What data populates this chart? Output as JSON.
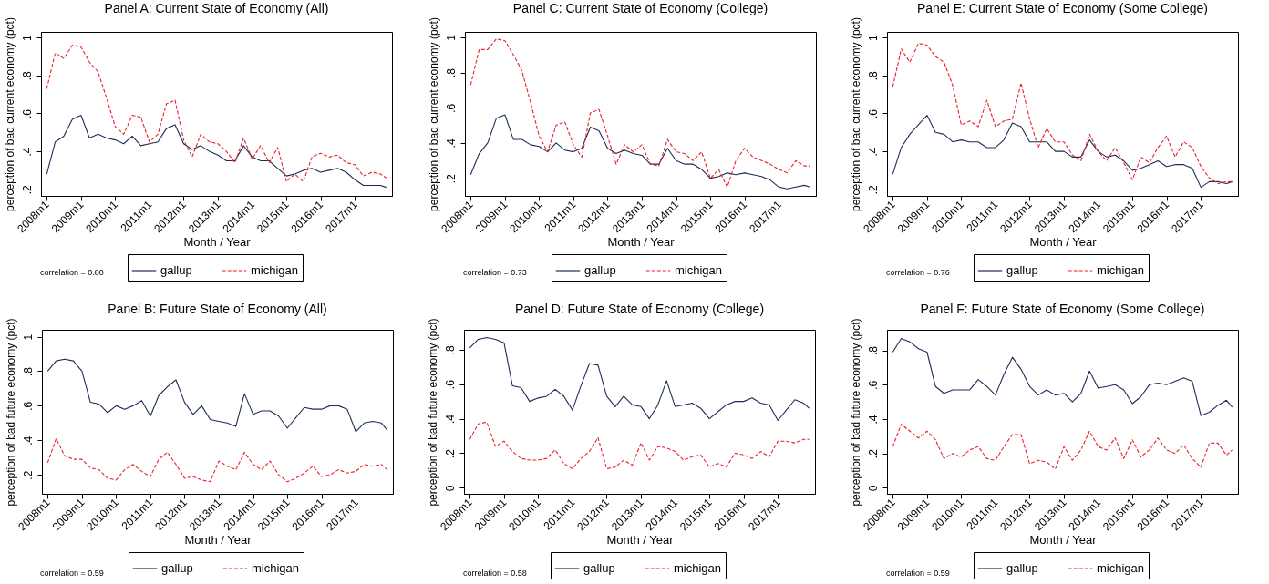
{
  "chart_data": [
    {
      "type": "line",
      "title": "Panel A: Current State of Economy (All)",
      "xlabel": "Month / Year",
      "ylabel": "perception of bad current economy (pct)",
      "legend": "bottom",
      "annotations": [
        "correlation = 0.80"
      ],
      "x": [
        "2008-01",
        "2008-04",
        "2008-07",
        "2008-10",
        "2009-01",
        "2009-04",
        "2009-07",
        "2009-10",
        "2010-01",
        "2010-04",
        "2010-07",
        "2010-10",
        "2011-01",
        "2011-04",
        "2011-07",
        "2011-10",
        "2012-01",
        "2012-04",
        "2012-07",
        "2012-10",
        "2013-01",
        "2013-04",
        "2013-07",
        "2013-10",
        "2014-01",
        "2014-04",
        "2014-07",
        "2014-10",
        "2015-01",
        "2015-04",
        "2015-07",
        "2015-10",
        "2016-01",
        "2016-04",
        "2016-07",
        "2016-10",
        "2017-01",
        "2017-04",
        "2017-07",
        "2017-10",
        "2017-12"
      ],
      "xlim": [
        "2007-11",
        "2018-02"
      ],
      "xticks": [
        {
          "value": "2008-01",
          "label": "2008m1"
        },
        {
          "value": "2009-01",
          "label": "2009m1"
        },
        {
          "value": "2010-01",
          "label": "2010m1"
        },
        {
          "value": "2011-01",
          "label": "2011m1"
        },
        {
          "value": "2012-01",
          "label": "2012m1"
        },
        {
          "value": "2013-01",
          "label": "2013m1"
        },
        {
          "value": "2014-01",
          "label": "2014m1"
        },
        {
          "value": "2015-01",
          "label": "2015m1"
        },
        {
          "value": "2016-01",
          "label": "2016m1"
        },
        {
          "value": "2017-01",
          "label": "2017m1"
        }
      ],
      "ylim": [
        0.165,
        1.03
      ],
      "yticks": [
        {
          "value": 0.2,
          "label": ".2"
        },
        {
          "value": 0.4,
          "label": ".4"
        },
        {
          "value": 0.6,
          "label": ".6"
        },
        {
          "value": 0.8,
          "label": ".8"
        },
        {
          "value": 1,
          "label": "1"
        }
      ],
      "series": [
        {
          "name": "gallup",
          "color": "#1c2d5a",
          "line_style": "solid",
          "values": [
            0.28,
            0.45,
            0.48,
            0.57,
            0.59,
            0.47,
            0.49,
            0.47,
            0.46,
            0.44,
            0.48,
            0.43,
            0.44,
            0.45,
            0.52,
            0.54,
            0.44,
            0.41,
            0.43,
            0.4,
            0.38,
            0.35,
            0.35,
            0.43,
            0.37,
            0.35,
            0.35,
            0.31,
            0.27,
            0.28,
            0.3,
            0.31,
            0.29,
            0.3,
            0.31,
            0.29,
            0.25,
            0.22,
            0.22,
            0.22,
            0.21
          ]
        },
        {
          "name": "michigan",
          "color": "#e8202a",
          "line_style": "dashed",
          "values": [
            0.73,
            0.92,
            0.89,
            0.96,
            0.95,
            0.87,
            0.82,
            0.68,
            0.53,
            0.49,
            0.59,
            0.58,
            0.45,
            0.49,
            0.65,
            0.67,
            0.46,
            0.37,
            0.49,
            0.45,
            0.44,
            0.4,
            0.34,
            0.47,
            0.36,
            0.43,
            0.34,
            0.42,
            0.24,
            0.28,
            0.24,
            0.37,
            0.39,
            0.37,
            0.38,
            0.34,
            0.33,
            0.27,
            0.29,
            0.28,
            0.26
          ]
        }
      ]
    },
    {
      "type": "line",
      "title": "Panel C: Current State of Economy (College)",
      "xlabel": "Month / Year",
      "ylabel": "perception of bad current economy (pct)",
      "legend": "bottom",
      "annotations": [
        "correlation = 0.73"
      ],
      "x": [
        "2008-01",
        "2008-04",
        "2008-07",
        "2008-10",
        "2009-01",
        "2009-04",
        "2009-07",
        "2009-10",
        "2010-01",
        "2010-04",
        "2010-07",
        "2010-10",
        "2011-01",
        "2011-04",
        "2011-07",
        "2011-10",
        "2012-01",
        "2012-04",
        "2012-07",
        "2012-10",
        "2013-01",
        "2013-04",
        "2013-07",
        "2013-10",
        "2014-01",
        "2014-04",
        "2014-07",
        "2014-10",
        "2015-01",
        "2015-04",
        "2015-07",
        "2015-10",
        "2016-01",
        "2016-04",
        "2016-07",
        "2016-10",
        "2017-01",
        "2017-04",
        "2017-07",
        "2017-10",
        "2017-12"
      ],
      "xlim": [
        "2007-11",
        "2018-02"
      ],
      "xticks": [
        {
          "value": "2008-01",
          "label": "2008m1"
        },
        {
          "value": "2009-01",
          "label": "2009m1"
        },
        {
          "value": "2010-01",
          "label": "2010m1"
        },
        {
          "value": "2011-01",
          "label": "2011m1"
        },
        {
          "value": "2012-01",
          "label": "2012m1"
        },
        {
          "value": "2013-01",
          "label": "2013m1"
        },
        {
          "value": "2014-01",
          "label": "2014m1"
        },
        {
          "value": "2015-01",
          "label": "2015m1"
        },
        {
          "value": "2016-01",
          "label": "2016m1"
        },
        {
          "value": "2017-01",
          "label": "2017m1"
        }
      ],
      "ylim": [
        0.1,
        1.03
      ],
      "yticks": [
        {
          "value": 0.2,
          "label": ".2"
        },
        {
          "value": 0.4,
          "label": ".4"
        },
        {
          "value": 0.6,
          "label": ".6"
        },
        {
          "value": 0.8,
          "label": ".8"
        },
        {
          "value": 1,
          "label": "1"
        }
      ],
      "series": [
        {
          "name": "gallup",
          "color": "#1c2d5a",
          "line_style": "solid",
          "values": [
            0.22,
            0.34,
            0.4,
            0.54,
            0.56,
            0.42,
            0.42,
            0.39,
            0.38,
            0.35,
            0.4,
            0.36,
            0.35,
            0.37,
            0.49,
            0.47,
            0.37,
            0.34,
            0.36,
            0.34,
            0.33,
            0.28,
            0.28,
            0.37,
            0.3,
            0.28,
            0.28,
            0.25,
            0.2,
            0.21,
            0.23,
            0.22,
            0.23,
            0.22,
            0.21,
            0.19,
            0.15,
            0.14,
            0.15,
            0.16,
            0.15
          ]
        },
        {
          "name": "michigan",
          "color": "#e8202a",
          "line_style": "dashed",
          "values": [
            0.73,
            0.93,
            0.93,
            0.99,
            0.98,
            0.9,
            0.81,
            0.63,
            0.44,
            0.35,
            0.5,
            0.52,
            0.39,
            0.32,
            0.57,
            0.59,
            0.44,
            0.28,
            0.39,
            0.35,
            0.39,
            0.28,
            0.27,
            0.42,
            0.35,
            0.34,
            0.3,
            0.35,
            0.2,
            0.25,
            0.15,
            0.3,
            0.37,
            0.32,
            0.3,
            0.28,
            0.25,
            0.23,
            0.3,
            0.27,
            0.27
          ]
        }
      ]
    },
    {
      "type": "line",
      "title": "Panel E: Current State of Economy (Some College)",
      "xlabel": "Month / Year",
      "ylabel": "perception of bad current economy (pct)",
      "legend": "bottom",
      "annotations": [
        "correlation = 0.76"
      ],
      "x": [
        "2008-01",
        "2008-04",
        "2008-07",
        "2008-10",
        "2009-01",
        "2009-04",
        "2009-07",
        "2009-10",
        "2010-01",
        "2010-04",
        "2010-07",
        "2010-10",
        "2011-01",
        "2011-04",
        "2011-07",
        "2011-10",
        "2012-01",
        "2012-04",
        "2012-07",
        "2012-10",
        "2013-01",
        "2013-04",
        "2013-07",
        "2013-10",
        "2014-01",
        "2014-04",
        "2014-07",
        "2014-10",
        "2015-01",
        "2015-04",
        "2015-07",
        "2015-10",
        "2016-01",
        "2016-04",
        "2016-07",
        "2016-10",
        "2017-01",
        "2017-04",
        "2017-07",
        "2017-10",
        "2017-12"
      ],
      "xlim": [
        "2007-11",
        "2018-02"
      ],
      "xticks": [
        {
          "value": "2008-01",
          "label": "2008m1"
        },
        {
          "value": "2009-01",
          "label": "2009m1"
        },
        {
          "value": "2010-01",
          "label": "2010m1"
        },
        {
          "value": "2011-01",
          "label": "2011m1"
        },
        {
          "value": "2012-01",
          "label": "2012m1"
        },
        {
          "value": "2013-01",
          "label": "2013m1"
        },
        {
          "value": "2014-01",
          "label": "2014m1"
        },
        {
          "value": "2015-01",
          "label": "2015m1"
        },
        {
          "value": "2016-01",
          "label": "2016m1"
        },
        {
          "value": "2017-01",
          "label": "2017m1"
        }
      ],
      "ylim": [
        0.165,
        1.03
      ],
      "yticks": [
        {
          "value": 0.2,
          "label": ".2"
        },
        {
          "value": 0.4,
          "label": ".4"
        },
        {
          "value": 0.6,
          "label": ".6"
        },
        {
          "value": 0.8,
          "label": ".8"
        },
        {
          "value": 1,
          "label": "1"
        }
      ],
      "series": [
        {
          "name": "gallup",
          "color": "#1c2d5a",
          "line_style": "solid",
          "values": [
            0.28,
            0.42,
            0.49,
            0.54,
            0.59,
            0.5,
            0.49,
            0.45,
            0.46,
            0.45,
            0.45,
            0.42,
            0.42,
            0.46,
            0.55,
            0.53,
            0.45,
            0.45,
            0.45,
            0.4,
            0.4,
            0.37,
            0.37,
            0.46,
            0.4,
            0.37,
            0.38,
            0.35,
            0.3,
            0.31,
            0.33,
            0.35,
            0.32,
            0.33,
            0.33,
            0.31,
            0.21,
            0.24,
            0.24,
            0.23,
            0.24
          ]
        },
        {
          "name": "michigan",
          "color": "#e8202a",
          "line_style": "dashed",
          "values": [
            0.74,
            0.94,
            0.87,
            0.97,
            0.96,
            0.9,
            0.87,
            0.75,
            0.54,
            0.56,
            0.53,
            0.67,
            0.53,
            0.56,
            0.57,
            0.76,
            0.57,
            0.42,
            0.52,
            0.45,
            0.45,
            0.38,
            0.35,
            0.49,
            0.4,
            0.35,
            0.42,
            0.34,
            0.25,
            0.37,
            0.34,
            0.42,
            0.48,
            0.37,
            0.45,
            0.42,
            0.32,
            0.26,
            0.23,
            0.24,
            0.24
          ]
        }
      ]
    },
    {
      "type": "line",
      "title": "Panel B: Future State of Economy (All)",
      "xlabel": "Month / Year",
      "ylabel": "perception of bad future economy (pct)",
      "legend": "bottom",
      "annotations": [
        "correlation = 0.59"
      ],
      "x": [
        "2008-01",
        "2008-04",
        "2008-07",
        "2008-10",
        "2009-01",
        "2009-04",
        "2009-07",
        "2009-10",
        "2010-01",
        "2010-04",
        "2010-07",
        "2010-10",
        "2011-01",
        "2011-04",
        "2011-07",
        "2011-10",
        "2012-01",
        "2012-04",
        "2012-07",
        "2012-10",
        "2013-01",
        "2013-04",
        "2013-07",
        "2013-10",
        "2014-01",
        "2014-04",
        "2014-07",
        "2014-10",
        "2015-01",
        "2015-04",
        "2015-07",
        "2015-10",
        "2016-01",
        "2016-04",
        "2016-07",
        "2016-10",
        "2017-01",
        "2017-04",
        "2017-07",
        "2017-10",
        "2017-12"
      ],
      "xlim": [
        "2007-11",
        "2018-02"
      ],
      "xticks": [
        {
          "value": "2008-01",
          "label": "2008m1"
        },
        {
          "value": "2009-01",
          "label": "2009m1"
        },
        {
          "value": "2010-01",
          "label": "2010m1"
        },
        {
          "value": "2011-01",
          "label": "2011m1"
        },
        {
          "value": "2012-01",
          "label": "2012m1"
        },
        {
          "value": "2013-01",
          "label": "2013m1"
        },
        {
          "value": "2014-01",
          "label": "2014m1"
        },
        {
          "value": "2015-01",
          "label": "2015m1"
        },
        {
          "value": "2016-01",
          "label": "2016m1"
        },
        {
          "value": "2017-01",
          "label": "2017m1"
        }
      ],
      "ylim": [
        0.09,
        1.04
      ],
      "yticks": [
        {
          "value": 0.2,
          "label": ".2"
        },
        {
          "value": 0.4,
          "label": ".4"
        },
        {
          "value": 0.6,
          "label": ".6"
        },
        {
          "value": 0.8,
          "label": ".8"
        },
        {
          "value": 1,
          "label": "1"
        }
      ],
      "series": [
        {
          "name": "gallup",
          "color": "#1c2d5a",
          "line_style": "solid",
          "values": [
            0.8,
            0.86,
            0.87,
            0.86,
            0.8,
            0.62,
            0.61,
            0.56,
            0.6,
            0.58,
            0.6,
            0.63,
            0.54,
            0.66,
            0.71,
            0.75,
            0.62,
            0.55,
            0.6,
            0.52,
            0.51,
            0.5,
            0.48,
            0.67,
            0.55,
            0.57,
            0.57,
            0.54,
            0.47,
            0.53,
            0.59,
            0.58,
            0.58,
            0.6,
            0.6,
            0.58,
            0.45,
            0.5,
            0.51,
            0.5,
            0.46
          ]
        },
        {
          "name": "michigan",
          "color": "#e8202a",
          "line_style": "dashed",
          "values": [
            0.27,
            0.41,
            0.31,
            0.29,
            0.29,
            0.24,
            0.23,
            0.18,
            0.17,
            0.23,
            0.26,
            0.22,
            0.19,
            0.29,
            0.33,
            0.26,
            0.18,
            0.19,
            0.17,
            0.16,
            0.28,
            0.25,
            0.23,
            0.33,
            0.26,
            0.23,
            0.28,
            0.2,
            0.16,
            0.18,
            0.21,
            0.25,
            0.19,
            0.2,
            0.23,
            0.21,
            0.22,
            0.26,
            0.25,
            0.26,
            0.23
          ]
        }
      ]
    },
    {
      "type": "line",
      "title": "Panel D: Future State of Economy (College)",
      "xlabel": "Month / Year",
      "ylabel": "perception of bad future economy (pct)",
      "legend": "bottom",
      "annotations": [
        "correlation = 0.58"
      ],
      "x": [
        "2008-01",
        "2008-04",
        "2008-07",
        "2008-10",
        "2009-01",
        "2009-04",
        "2009-07",
        "2009-10",
        "2010-01",
        "2010-04",
        "2010-07",
        "2010-10",
        "2011-01",
        "2011-04",
        "2011-07",
        "2011-10",
        "2012-01",
        "2012-04",
        "2012-07",
        "2012-10",
        "2013-01",
        "2013-04",
        "2013-07",
        "2013-10",
        "2014-01",
        "2014-04",
        "2014-07",
        "2014-10",
        "2015-01",
        "2015-04",
        "2015-07",
        "2015-10",
        "2016-01",
        "2016-04",
        "2016-07",
        "2016-10",
        "2017-01",
        "2017-04",
        "2017-07",
        "2017-10",
        "2017-12"
      ],
      "xlim": [
        "2007-11",
        "2018-02"
      ],
      "xticks": [
        {
          "value": "2008-01",
          "label": "2008m1"
        },
        {
          "value": "2009-01",
          "label": "2009m1"
        },
        {
          "value": "2010-01",
          "label": "2010m1"
        },
        {
          "value": "2011-01",
          "label": "2011m1"
        },
        {
          "value": "2012-01",
          "label": "2012m1"
        },
        {
          "value": "2013-01",
          "label": "2013m1"
        },
        {
          "value": "2014-01",
          "label": "2014m1"
        },
        {
          "value": "2015-01",
          "label": "2015m1"
        },
        {
          "value": "2016-01",
          "label": "2016m1"
        },
        {
          "value": "2017-01",
          "label": "2017m1"
        }
      ],
      "ylim": [
        -0.035,
        0.915
      ],
      "yticks": [
        {
          "value": 0,
          "label": "0"
        },
        {
          "value": 0.2,
          "label": ".2"
        },
        {
          "value": 0.4,
          "label": ".4"
        },
        {
          "value": 0.6,
          "label": ".6"
        },
        {
          "value": 0.8,
          "label": ".8"
        }
      ],
      "series": [
        {
          "name": "gallup",
          "color": "#1c2d5a",
          "line_style": "solid",
          "values": [
            0.81,
            0.86,
            0.87,
            0.86,
            0.84,
            0.59,
            0.58,
            0.5,
            0.52,
            0.53,
            0.57,
            0.53,
            0.45,
            0.59,
            0.72,
            0.71,
            0.53,
            0.47,
            0.53,
            0.48,
            0.47,
            0.4,
            0.48,
            0.62,
            0.47,
            0.48,
            0.49,
            0.46,
            0.4,
            0.44,
            0.48,
            0.5,
            0.5,
            0.52,
            0.49,
            0.48,
            0.39,
            0.45,
            0.51,
            0.49,
            0.46
          ]
        },
        {
          "name": "michigan",
          "color": "#e8202a",
          "line_style": "dashed",
          "values": [
            0.28,
            0.37,
            0.38,
            0.24,
            0.27,
            0.21,
            0.17,
            0.16,
            0.16,
            0.17,
            0.22,
            0.14,
            0.11,
            0.17,
            0.21,
            0.29,
            0.11,
            0.12,
            0.16,
            0.13,
            0.26,
            0.16,
            0.24,
            0.23,
            0.21,
            0.16,
            0.18,
            0.19,
            0.12,
            0.14,
            0.12,
            0.2,
            0.19,
            0.17,
            0.21,
            0.18,
            0.27,
            0.27,
            0.26,
            0.28,
            0.28
          ]
        }
      ]
    },
    {
      "type": "line",
      "title": "Panel F: Future State of Economy (Some College)",
      "xlabel": "Month / Year",
      "ylabel": "perception of bad future economy (pct)",
      "legend": "bottom",
      "annotations": [
        "correlation = 0.59"
      ],
      "x": [
        "2008-01",
        "2008-04",
        "2008-07",
        "2008-10",
        "2009-01",
        "2009-04",
        "2009-07",
        "2009-10",
        "2010-01",
        "2010-04",
        "2010-07",
        "2010-10",
        "2011-01",
        "2011-04",
        "2011-07",
        "2011-10",
        "2012-01",
        "2012-04",
        "2012-07",
        "2012-10",
        "2013-01",
        "2013-04",
        "2013-07",
        "2013-10",
        "2014-01",
        "2014-04",
        "2014-07",
        "2014-10",
        "2015-01",
        "2015-04",
        "2015-07",
        "2015-10",
        "2016-01",
        "2016-04",
        "2016-07",
        "2016-10",
        "2017-01",
        "2017-04",
        "2017-07",
        "2017-10",
        "2017-12"
      ],
      "xlim": [
        "2007-11",
        "2018-02"
      ],
      "xticks": [
        {
          "value": "2008-01",
          "label": "2008m1"
        },
        {
          "value": "2009-01",
          "label": "2009m1"
        },
        {
          "value": "2010-01",
          "label": "2010m1"
        },
        {
          "value": "2011-01",
          "label": "2011m1"
        },
        {
          "value": "2012-01",
          "label": "2012m1"
        },
        {
          "value": "2013-01",
          "label": "2013m1"
        },
        {
          "value": "2014-01",
          "label": "2014m1"
        },
        {
          "value": "2015-01",
          "label": "2015m1"
        },
        {
          "value": "2016-01",
          "label": "2016m1"
        },
        {
          "value": "2017-01",
          "label": "2017m1"
        }
      ],
      "ylim": [
        -0.035,
        0.92
      ],
      "yticks": [
        {
          "value": 0,
          "label": "0"
        },
        {
          "value": 0.2,
          "label": ".2"
        },
        {
          "value": 0.4,
          "label": ".4"
        },
        {
          "value": 0.6,
          "label": ".6"
        },
        {
          "value": 0.8,
          "label": ".8"
        }
      ],
      "series": [
        {
          "name": "gallup",
          "color": "#1c2d5a",
          "line_style": "solid",
          "values": [
            0.79,
            0.87,
            0.85,
            0.81,
            0.79,
            0.59,
            0.55,
            0.57,
            0.57,
            0.57,
            0.63,
            0.59,
            0.54,
            0.66,
            0.76,
            0.69,
            0.59,
            0.54,
            0.57,
            0.54,
            0.55,
            0.5,
            0.55,
            0.68,
            0.58,
            0.59,
            0.6,
            0.57,
            0.49,
            0.53,
            0.6,
            0.61,
            0.6,
            0.62,
            0.64,
            0.62,
            0.42,
            0.44,
            0.48,
            0.51,
            0.47
          ]
        },
        {
          "name": "michigan",
          "color": "#e8202a",
          "line_style": "dashed",
          "values": [
            0.24,
            0.37,
            0.33,
            0.29,
            0.33,
            0.28,
            0.17,
            0.2,
            0.18,
            0.22,
            0.24,
            0.17,
            0.16,
            0.24,
            0.31,
            0.31,
            0.14,
            0.16,
            0.15,
            0.11,
            0.24,
            0.16,
            0.22,
            0.33,
            0.24,
            0.22,
            0.29,
            0.17,
            0.28,
            0.18,
            0.22,
            0.29,
            0.22,
            0.2,
            0.25,
            0.17,
            0.12,
            0.26,
            0.26,
            0.19,
            0.22
          ]
        }
      ]
    }
  ]
}
